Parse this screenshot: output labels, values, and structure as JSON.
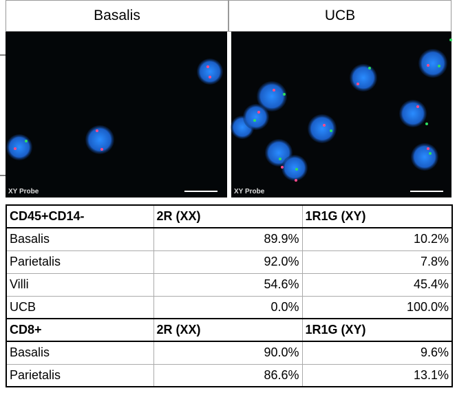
{
  "panels": [
    {
      "title": "Basalis",
      "probe_label": "XY Probe"
    },
    {
      "title": "UCB",
      "probe_label": "XY Probe"
    }
  ],
  "table": {
    "sections": [
      {
        "header": [
          "CD45+CD14-",
          "2R (XX)",
          "1R1G (XY)"
        ],
        "rows": [
          [
            "Basalis",
            "89.9%",
            "10.2%"
          ],
          [
            "Parietalis",
            "92.0%",
            "7.8%"
          ],
          [
            "Villi",
            "54.6%",
            "45.4%"
          ],
          [
            "UCB",
            "0.0%",
            "100.0%"
          ]
        ]
      },
      {
        "header": [
          "CD8+",
          "2R (XX)",
          "1R1G (XY)"
        ],
        "rows": [
          [
            "Basalis",
            "90.0%",
            "9.6%"
          ],
          [
            "Parietalis",
            "86.6%",
            "13.1%"
          ]
        ]
      }
    ]
  }
}
